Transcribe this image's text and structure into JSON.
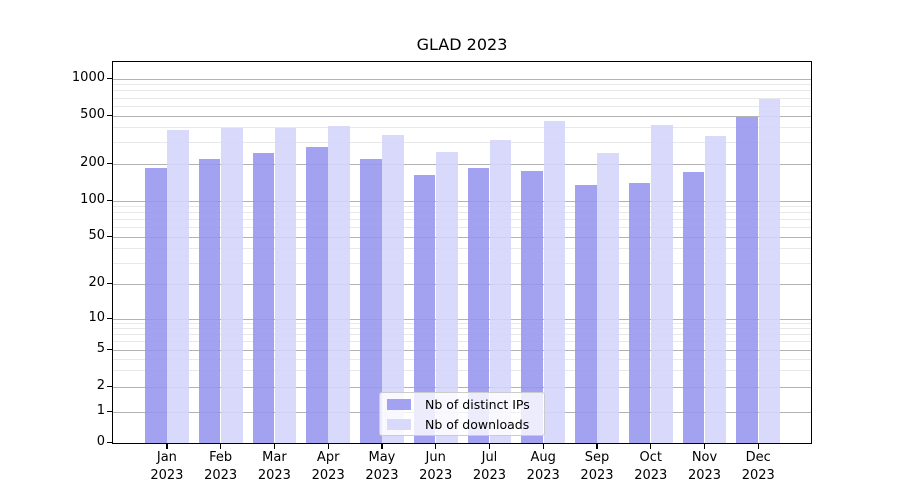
{
  "title": "GLAD 2023",
  "legend": {
    "items": [
      {
        "label": "Nb of distinct IPs",
        "color": "#9595ee"
      },
      {
        "label": "Nb of downloads",
        "color": "#d4d4fa"
      }
    ]
  },
  "chart_data": {
    "type": "bar",
    "title": "GLAD 2023",
    "categories": [
      "Jan 2023",
      "Feb 2023",
      "Mar 2023",
      "Apr 2023",
      "May 2023",
      "Jun 2023",
      "Jul 2023",
      "Aug 2023",
      "Sep 2023",
      "Oct 2023",
      "Nov 2023",
      "Dec 2023"
    ],
    "series": [
      {
        "name": "Nb of distinct IPs",
        "color": "#9595ee",
        "values": [
          185,
          220,
          246,
          277,
          219,
          163,
          186,
          175,
          135,
          140,
          172,
          488
        ]
      },
      {
        "name": "Nb of downloads",
        "color": "#d4d4fa",
        "values": [
          380,
          396,
          400,
          413,
          347,
          251,
          315,
          452,
          246,
          419,
          340,
          685
        ]
      }
    ],
    "xlabel": "",
    "ylabel": "",
    "yscale": "symlog",
    "y_ticks": [
      0,
      1,
      2,
      5,
      10,
      20,
      50,
      100,
      200,
      500,
      1000
    ],
    "ylim": [
      0,
      1400
    ],
    "grid": "horizontal, major and minor",
    "legend_position": "lower center inside plot"
  }
}
